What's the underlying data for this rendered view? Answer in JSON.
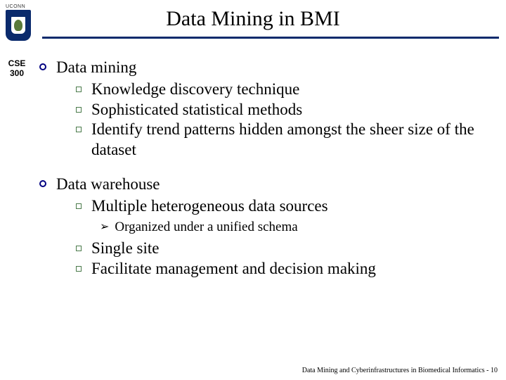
{
  "header": {
    "logo_text": "UCONN",
    "title": "Data Mining in BMI",
    "underline_color": "#0a2a6c"
  },
  "sidebar": {
    "line1": "CSE",
    "line2": "300"
  },
  "bullets": [
    {
      "label": "Data mining",
      "subs": [
        {
          "text": "Knowledge discovery technique"
        },
        {
          "text": "Sophisticated statistical methods"
        },
        {
          "text": "Identify trend patterns hidden amongst the sheer size of the dataset"
        }
      ]
    },
    {
      "label": "Data warehouse",
      "subs": [
        {
          "text": "Multiple heterogeneous data sources",
          "subsubs": [
            {
              "text": "Organized under a unified schema"
            }
          ]
        },
        {
          "text": "Single site"
        },
        {
          "text": "Facilitate management and decision making"
        }
      ]
    }
  ],
  "footer": {
    "text": "Data Mining and Cyberinfrastructures in Biomedical Informatics - 10"
  },
  "colors": {
    "circle_bullet_border": "#000080",
    "square_bullet_border": "#4a7a4a",
    "shield_bg": "#0a2a6c",
    "oak_color": "#5a7a3a"
  }
}
